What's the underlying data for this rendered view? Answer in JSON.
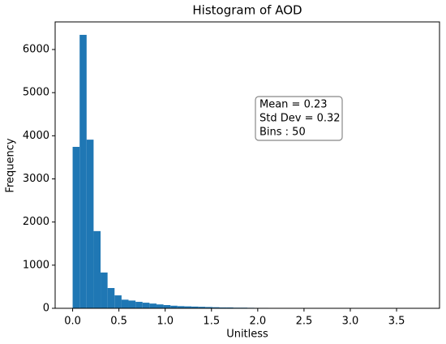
{
  "chart_data": {
    "type": "histogram",
    "title": "Histogram of AOD",
    "xlabel": "Unitless",
    "ylabel": "Frequency",
    "bins": [
      0,
      0.0755,
      0.151,
      0.2265,
      0.302,
      0.3775,
      0.453,
      0.5285,
      0.604,
      0.6795,
      0.755,
      0.8305,
      0.906,
      0.9815,
      1.057,
      1.1325,
      1.208,
      1.2835,
      1.359,
      1.4345,
      1.51,
      1.5855,
      1.661,
      1.7365,
      1.812,
      1.8875,
      1.963,
      2.0385,
      2.114,
      2.1895,
      2.265,
      2.3405,
      2.416,
      2.4915,
      2.567,
      2.6425,
      2.718,
      2.7935,
      2.869,
      2.9445,
      3.02,
      3.0955,
      3.171,
      3.2465,
      3.322,
      3.3975,
      3.473,
      3.5485,
      3.624,
      3.6995,
      3.775
    ],
    "values": [
      3743,
      6340,
      3910,
      1790,
      830,
      470,
      300,
      200,
      180,
      150,
      130,
      110,
      90,
      75,
      60,
      50,
      45,
      40,
      35,
      30,
      25,
      20,
      20,
      15,
      15,
      12,
      10,
      10,
      8,
      8,
      6,
      6,
      5,
      5,
      5,
      4,
      4,
      3,
      3,
      3,
      3,
      2,
      2,
      2,
      2,
      2,
      1,
      1,
      1,
      1
    ],
    "color": "#1f77b4",
    "xlim": [
      -0.189,
      3.964
    ],
    "ylim": [
      0,
      6640
    ],
    "xticks": [
      {
        "value": 0,
        "label": "0.0"
      },
      {
        "value": 0.5,
        "label": "0.5"
      },
      {
        "value": 1,
        "label": "1.0"
      },
      {
        "value": 1.5,
        "label": "1.5"
      },
      {
        "value": 2,
        "label": "2.0"
      },
      {
        "value": 2.5,
        "label": "2.5"
      },
      {
        "value": 3,
        "label": "3.0"
      },
      {
        "value": 3.5,
        "label": "3.5"
      }
    ],
    "yticks": [
      0,
      1000,
      2000,
      3000,
      4000,
      5000,
      6000
    ],
    "annotations": [
      "Mean = 0.23",
      "Std Dev = 0.32",
      "Bins : 50"
    ]
  }
}
